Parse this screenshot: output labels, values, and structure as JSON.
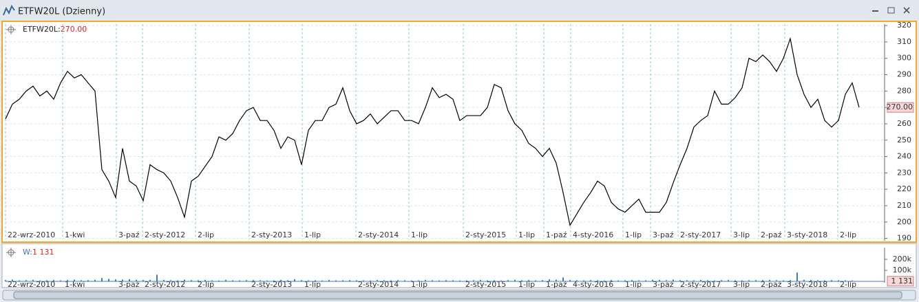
{
  "window": {
    "title": "ETFW20L (Dzienny)"
  },
  "chart_data": [
    {
      "type": "line",
      "grid": true,
      "series": [
        {
          "name": "ETFW20L:",
          "color": "#000000",
          "values": [
            263,
            272,
            275,
            280,
            283,
            277,
            280,
            275,
            285,
            292,
            288,
            290,
            285,
            280,
            232,
            225,
            215,
            245,
            225,
            222,
            213,
            235,
            232,
            230,
            225,
            215,
            203,
            225,
            228,
            234,
            240,
            252,
            250,
            254,
            262,
            268,
            270,
            262,
            262,
            256,
            245,
            252,
            250,
            235,
            256,
            262,
            262,
            270,
            272,
            282,
            268,
            260,
            262,
            266,
            260,
            264,
            268,
            268,
            262,
            262,
            260,
            270,
            282,
            276,
            278,
            275,
            262,
            265,
            265,
            265,
            270,
            284,
            282,
            268,
            260,
            256,
            248,
            245,
            240,
            245,
            236,
            218,
            198,
            205,
            212,
            218,
            225,
            222,
            212,
            208,
            206,
            210,
            214,
            206,
            206,
            206,
            212,
            224,
            235,
            245,
            258,
            262,
            265,
            280,
            272,
            272,
            276,
            282,
            300,
            298,
            302,
            298,
            292,
            300,
            312,
            290,
            278,
            270,
            275,
            262,
            258,
            262,
            278,
            285,
            270
          ]
        }
      ],
      "last_value": {
        "value": 270,
        "label": "270.00"
      },
      "ylim": [
        189.4,
        320.9
      ],
      "yticks": [
        190,
        200,
        210,
        220,
        230,
        240,
        250,
        260,
        270,
        280,
        290,
        300,
        310,
        320
      ],
      "xlim": [
        0,
        127.7
      ],
      "xticks": [
        {
          "value": 0,
          "label": "22-wrz-2010"
        },
        {
          "value": 8.3,
          "label": "1-kwi"
        },
        {
          "value": 16.1,
          "label": "3-paź"
        },
        {
          "value": 19.9,
          "label": "2-sty-2012"
        },
        {
          "value": 27.6,
          "label": "2-lip"
        },
        {
          "value": 35.4,
          "label": "2-sty-2013"
        },
        {
          "value": 43.1,
          "label": "1-lip"
        },
        {
          "value": 50.9,
          "label": "2-sty-2014"
        },
        {
          "value": 58.6,
          "label": "1-lip"
        },
        {
          "value": 66.5,
          "label": "2-sty-2015"
        },
        {
          "value": 74.2,
          "label": "1-lip"
        },
        {
          "value": 78.2,
          "label": "1-paź"
        },
        {
          "value": 82.1,
          "label": "4-sty-2016"
        },
        {
          "value": 89.7,
          "label": "1-lip"
        },
        {
          "value": 93.7,
          "label": "3-paź"
        },
        {
          "value": 97.7,
          "label": "2-sty-2017"
        },
        {
          "value": 105.4,
          "label": "3-lip"
        },
        {
          "value": 109.4,
          "label": "2-paź"
        },
        {
          "value": 113.2,
          "label": "3-sty-2018"
        },
        {
          "value": 120.9,
          "label": "2-lip"
        }
      ]
    },
    {
      "type": "bar",
      "grid": false,
      "series": [
        {
          "name": "W:",
          "color": "#3a78c8",
          "values": [
            12000,
            15000,
            9000,
            11000,
            14000,
            8000,
            10000,
            13000,
            9000,
            12000,
            16000,
            10000,
            11000,
            14000,
            30000,
            22000,
            18000,
            15000,
            20000,
            14000,
            12000,
            13000,
            60000,
            12000,
            10000,
            9000,
            15000,
            11000,
            10000,
            12000,
            9000,
            8000,
            14000,
            10000,
            9000,
            11000,
            12000,
            10000,
            8000,
            9000,
            13000,
            10000,
            20000,
            11000,
            9000,
            10000,
            8000,
            12000,
            9000,
            10000,
            11000,
            10000,
            9000,
            8000,
            12000,
            10000,
            9000,
            11000,
            10000,
            8000,
            9000,
            12000,
            10000,
            9000,
            11000,
            10000,
            8000,
            9000,
            10000,
            12000,
            9000,
            10000,
            8000,
            11000,
            14000,
            10000,
            12000,
            9000,
            11000,
            18000,
            15000,
            35000,
            12000,
            10000,
            9000,
            11000,
            10000,
            8000,
            12000,
            9000,
            10000,
            11000,
            9000,
            10000,
            14000,
            12000,
            10000,
            15000,
            11000,
            10000,
            9000,
            12000,
            10000,
            8000,
            11000,
            12000,
            10000,
            9000,
            10000,
            11000,
            12000,
            13000,
            10000,
            9000,
            11000,
            80000,
            14000,
            12000,
            10000,
            9000,
            11000,
            10000,
            9000,
            8000,
            1131
          ]
        }
      ],
      "last_value": {
        "value": 1131,
        "label": "1 131"
      },
      "ylim": [
        0,
        306000
      ],
      "yticks": [
        {
          "value": 100000,
          "label": "100k"
        },
        {
          "value": 200000,
          "label": "200k"
        }
      ],
      "xlim": [
        0,
        127.7
      ],
      "xticks": [
        {
          "value": 0,
          "label": "22-wrz-2010"
        },
        {
          "value": 8.3,
          "label": "1-kwi"
        },
        {
          "value": 16.1,
          "label": "3-paź"
        },
        {
          "value": 19.9,
          "label": "2-sty-2012"
        },
        {
          "value": 27.6,
          "label": "2-lip"
        },
        {
          "value": 35.4,
          "label": "2-sty-2013"
        },
        {
          "value": 43.1,
          "label": "1-lip"
        },
        {
          "value": 50.9,
          "label": "2-sty-2014"
        },
        {
          "value": 58.6,
          "label": "1-lip"
        },
        {
          "value": 66.5,
          "label": "2-sty-2015"
        },
        {
          "value": 74.2,
          "label": "1-lip"
        },
        {
          "value": 78.2,
          "label": "1-paź"
        },
        {
          "value": 82.1,
          "label": "4-sty-2016"
        },
        {
          "value": 89.7,
          "label": "1-lip"
        },
        {
          "value": 93.7,
          "label": "3-paź"
        },
        {
          "value": 97.7,
          "label": "2-sty-2017"
        },
        {
          "value": 105.4,
          "label": "3-lip"
        },
        {
          "value": 109.4,
          "label": "2-paź"
        },
        {
          "value": 113.2,
          "label": "3-sty-2018"
        },
        {
          "value": 120.9,
          "label": "2-lip"
        }
      ]
    }
  ]
}
